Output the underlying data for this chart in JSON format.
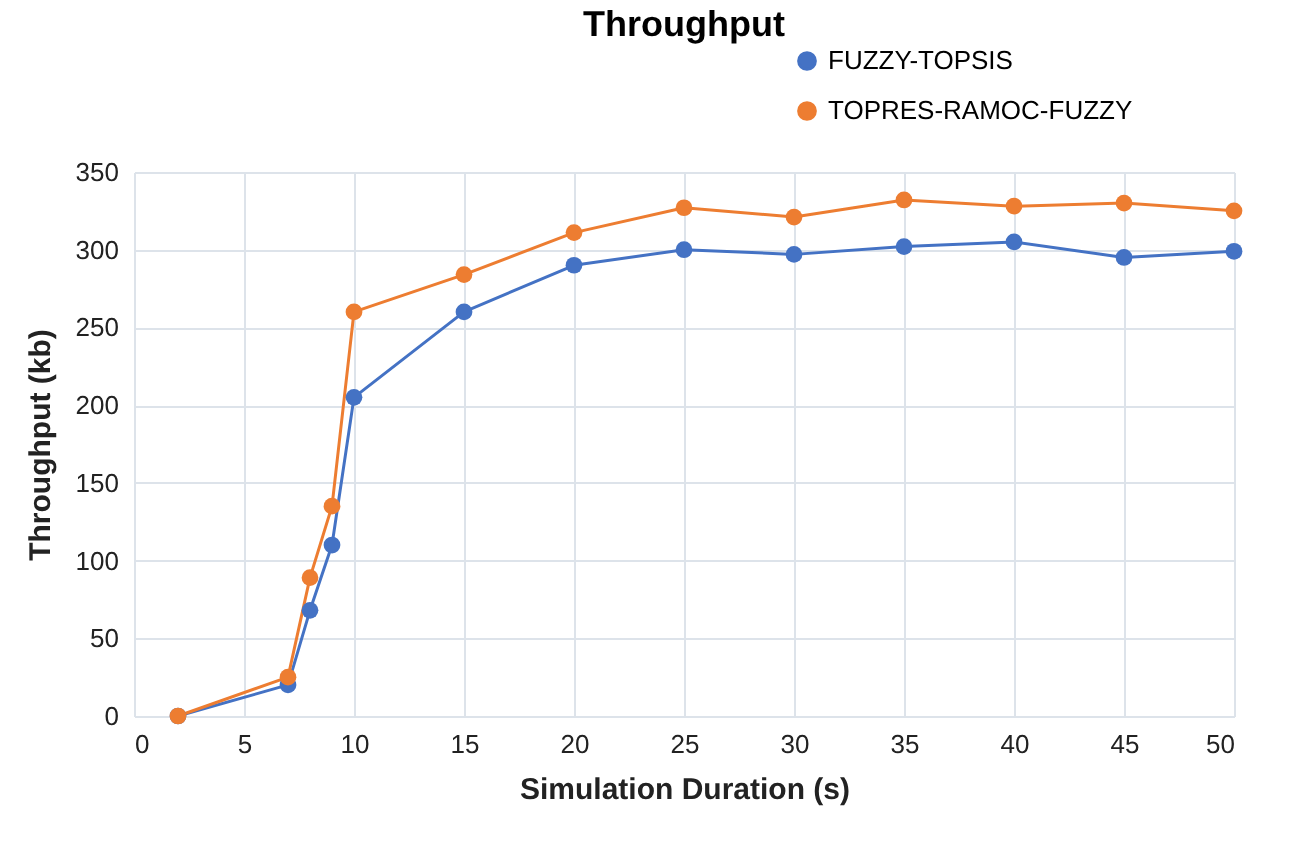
{
  "chart_data": {
    "type": "line",
    "title": "Throughput",
    "xlabel": "Simulation Duration (s)",
    "ylabel": "Throughput (kb)",
    "x": [
      2,
      7,
      8,
      9,
      10,
      15,
      20,
      25,
      30,
      35,
      40,
      45,
      50
    ],
    "series": [
      {
        "name": "FUZZY-TOPSIS",
        "color": "#4472c4",
        "values": [
          0,
          20,
          68,
          110,
          205,
          260,
          290,
          300,
          297,
          302,
          305,
          295,
          299
        ]
      },
      {
        "name": "TOPRES-RAMOC-FUZZY",
        "color": "#ed7d31",
        "values": [
          0,
          25,
          89,
          135,
          260,
          284,
          311,
          327,
          321,
          332,
          328,
          330,
          325
        ]
      }
    ],
    "xlim": [
      0,
      50
    ],
    "xticks": [
      0,
      5,
      10,
      15,
      20,
      25,
      30,
      35,
      40,
      45,
      50
    ],
    "ylim": [
      0,
      350
    ],
    "yticks": [
      0,
      50,
      100,
      150,
      200,
      250,
      300,
      350
    ],
    "grid": true,
    "legend": "top right",
    "marker": "circle",
    "line_style": "solid"
  }
}
